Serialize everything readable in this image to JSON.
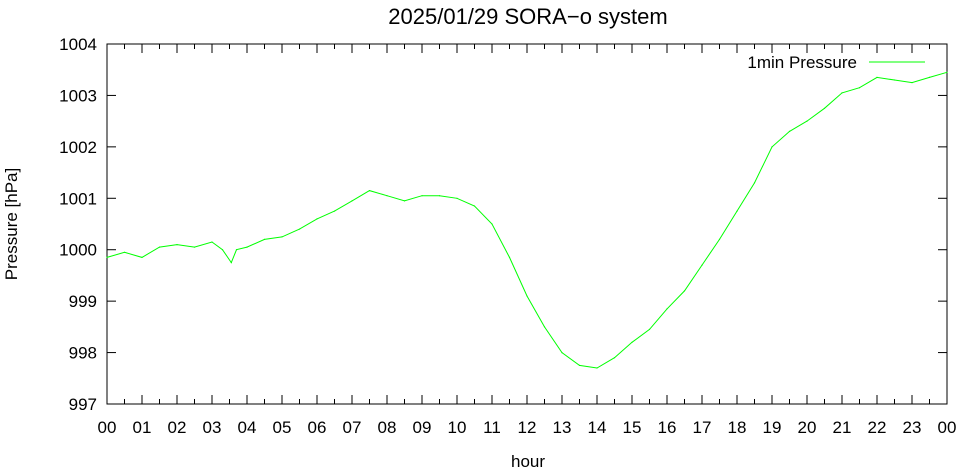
{
  "chart_data": {
    "type": "line",
    "title": "2025/01/29 SORA−o system",
    "xlabel": "hour",
    "ylabel": "Pressure [hPa]",
    "xlim": [
      0,
      24
    ],
    "ylim": [
      997,
      1004
    ],
    "xtick_labels": [
      "00",
      "01",
      "02",
      "03",
      "04",
      "05",
      "06",
      "07",
      "08",
      "09",
      "10",
      "11",
      "12",
      "13",
      "14",
      "15",
      "16",
      "17",
      "18",
      "19",
      "20",
      "21",
      "22",
      "23",
      "00"
    ],
    "ytick_labels": [
      "997",
      "998",
      "999",
      "1000",
      "1001",
      "1002",
      "1003",
      "1004"
    ],
    "legend_position": "top-right",
    "grid": false,
    "series": [
      {
        "name": "1min Pressure",
        "color": "#00ff00",
        "x": [
          0,
          0.5,
          1,
          1.5,
          2,
          2.5,
          3,
          3.3,
          3.55,
          3.7,
          4,
          4.5,
          5,
          5.5,
          6,
          6.5,
          7,
          7.5,
          8,
          8.5,
          9,
          9.5,
          10,
          10.5,
          11,
          11.5,
          12,
          12.5,
          13,
          13.5,
          14,
          14.5,
          15,
          15.5,
          16,
          16.5,
          17,
          17.5,
          18,
          18.5,
          19,
          19.5,
          20,
          20.5,
          21,
          21.5,
          22,
          22.5,
          23,
          23.5,
          24
        ],
        "y": [
          999.85,
          999.95,
          999.85,
          1000.05,
          1000.1,
          1000.05,
          1000.15,
          1000.0,
          999.75,
          1000.0,
          1000.05,
          1000.2,
          1000.25,
          1000.4,
          1000.6,
          1000.75,
          1000.95,
          1001.15,
          1001.05,
          1000.95,
          1001.05,
          1001.05,
          1001.0,
          1000.85,
          1000.5,
          999.85,
          999.1,
          998.5,
          998.0,
          997.75,
          997.7,
          997.9,
          998.2,
          998.45,
          998.85,
          999.2,
          999.7,
          1000.2,
          1000.75,
          1001.3,
          1002.0,
          1002.3,
          1002.5,
          1002.75,
          1003.05,
          1003.15,
          1003.35,
          1003.3,
          1003.25,
          1003.35,
          1003.45
        ]
      }
    ]
  }
}
